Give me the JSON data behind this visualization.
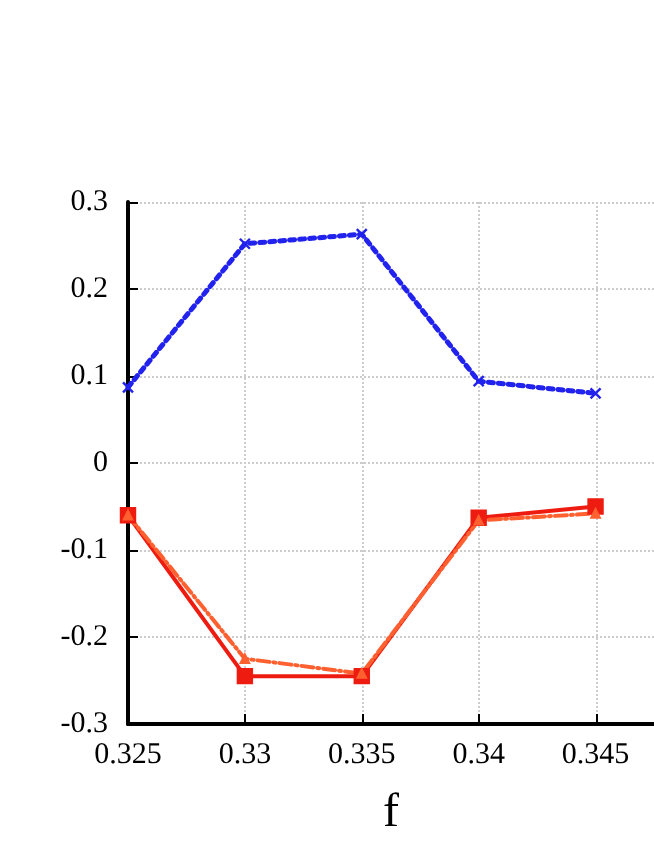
{
  "chart_data": {
    "type": "line",
    "xlabel": "f",
    "x": [
      0.325,
      0.33,
      0.335,
      0.34,
      0.345
    ],
    "series": [
      {
        "color": "#2222ee",
        "values": [
          0.087,
          0.252,
          0.263,
          0.094,
          0.08
        ],
        "marker": "cross",
        "line_style": "dotted"
      },
      {
        "color": "#ee1c10",
        "values": [
          -0.06,
          -0.245,
          -0.245,
          -0.063,
          -0.05
        ],
        "marker": "square",
        "line_style": "solid"
      },
      {
        "color": "#ff6030",
        "values": [
          -0.06,
          -0.225,
          -0.242,
          -0.066,
          -0.058
        ],
        "marker": "triangle",
        "line_style": "dashed"
      }
    ],
    "xlim": [
      0.325,
      0.3475
    ],
    "xticks": [
      0.325,
      0.33,
      0.335,
      0.34,
      0.345
    ],
    "ylim": [
      -0.3,
      0.3
    ],
    "yticks": [
      -0.3,
      -0.2,
      -0.1,
      0,
      0.1,
      0.2,
      0.3
    ],
    "grid": true
  }
}
